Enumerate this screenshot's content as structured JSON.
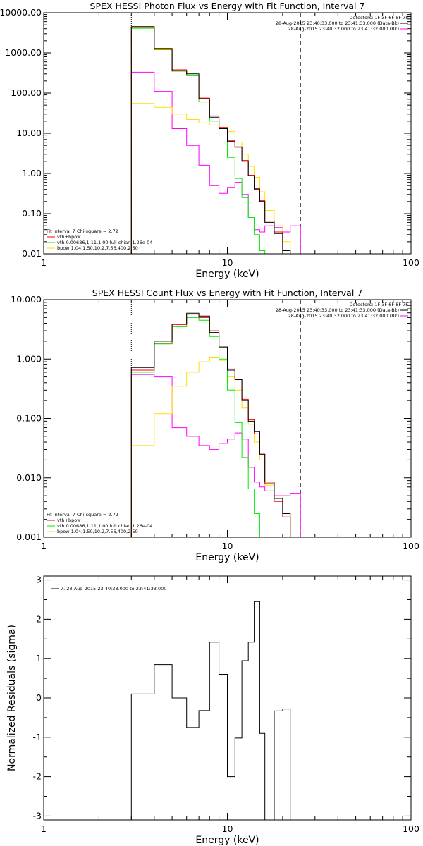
{
  "chart_data": [
    {
      "type": "line",
      "title": "SPEX HESSI Photon Flux vs Energy with Fit Function, Interval 7",
      "xlabel": "Energy (keV)",
      "ylabel": "",
      "x_scale": "log",
      "y_scale": "log",
      "xlim": [
        1,
        100
      ],
      "ylim": [
        0.01,
        10000
      ],
      "x_ticks": [
        {
          "v": 1,
          "label": "1"
        },
        {
          "v": 10,
          "label": "10"
        },
        {
          "v": 100,
          "label": "100"
        }
      ],
      "y_ticks": [
        {
          "v": 10000,
          "label": "10000.00"
        },
        {
          "v": 1000,
          "label": "1000.00"
        },
        {
          "v": 100,
          "label": "100.00"
        },
        {
          "v": 10,
          "label": "10.00"
        },
        {
          "v": 1,
          "label": "1.00"
        },
        {
          "v": 0.1,
          "label": "0.10"
        },
        {
          "v": 0.01,
          "label": "0.01"
        }
      ],
      "vlines": [
        {
          "x": 3,
          "style": "dotted",
          "color": "#000000"
        },
        {
          "x": 25,
          "style": "dashed",
          "color": "#000000"
        }
      ],
      "bin_edges": [
        3,
        4,
        5,
        6,
        7,
        8,
        9,
        10,
        11,
        12,
        13,
        14,
        15,
        16,
        18,
        20,
        22,
        25
      ],
      "series": [
        {
          "name": "data",
          "color": "#000000",
          "values": [
            4500,
            1250,
            360,
            300,
            72,
            25,
            13,
            6.2,
            4.5,
            2.0,
            0.88,
            0.4,
            0.2,
            0.06,
            0.032,
            0.012,
            null
          ]
        },
        {
          "name": "vth+bpow",
          "color": "#ff0000",
          "values": [
            4300,
            1300,
            380,
            280,
            75,
            27,
            14,
            6.5,
            4.6,
            2.1,
            0.9,
            0.42,
            0.21,
            0.065,
            0.035,
            0.012,
            null
          ]
        },
        {
          "name": "vth 0.00686,1.11,1.00 full chian 1.26e-04",
          "color": "#00ee00",
          "values": [
            4100,
            1200,
            350,
            270,
            60,
            20,
            8,
            2.5,
            0.75,
            0.25,
            0.08,
            0.03,
            0.012,
            null,
            null,
            null,
            null
          ]
        },
        {
          "name": "bpow 1.04,1.50,10.2,7.56,400,2.50",
          "color": "#ffdd00",
          "values": [
            55,
            44,
            30,
            22,
            18,
            16,
            14,
            11,
            6,
            3,
            1.5,
            0.8,
            0.35,
            0.12,
            0.05,
            0.02,
            0.01
          ]
        },
        {
          "name": "Bk",
          "color": "#ff00ff",
          "values": [
            330,
            110,
            13,
            5,
            1.6,
            0.5,
            0.32,
            0.45,
            0.6,
            0.3,
            0.08,
            0.04,
            0.035,
            0.05,
            0.045,
            0.035,
            0.05
          ]
        }
      ],
      "legend_left": {
        "title": "Fit Interval 7   Chi-square = 2.72",
        "items": [
          {
            "label": "vth+bpow",
            "color": "#ff0000"
          },
          {
            "label": "vth 0.00686,1.11,1.00  full chian 1.26e-04",
            "color": "#00ee00"
          },
          {
            "label": "bpow 1.04,1.50,10.2,7.56,400,2.50",
            "color": "#ffdd00"
          }
        ]
      },
      "legend_right": {
        "header": "Detectors: 1F 3F 6F 8F 7F",
        "items": [
          {
            "label": "28-Aug-2015 23:40:33.000 to 23:41:33.000 (Data-Bk)",
            "color": "#000000"
          },
          {
            "label": "28-Aug-2015 23:40:32.000 to 23:41:32.000 (Bk)",
            "color": "#ff00ff"
          }
        ]
      }
    },
    {
      "type": "line",
      "title": "SPEX HESSI Count Flux vs Energy with Fit Function, Interval 7",
      "xlabel": "Energy (keV)",
      "ylabel": "",
      "x_scale": "log",
      "y_scale": "log",
      "xlim": [
        1,
        100
      ],
      "ylim": [
        0.001,
        10
      ],
      "x_ticks": [
        {
          "v": 1,
          "label": "1"
        },
        {
          "v": 10,
          "label": "10"
        },
        {
          "v": 100,
          "label": "100"
        }
      ],
      "y_ticks": [
        {
          "v": 10,
          "label": "10.000"
        },
        {
          "v": 1,
          "label": "1.000"
        },
        {
          "v": 0.1,
          "label": "0.100"
        },
        {
          "v": 0.01,
          "label": "0.010"
        },
        {
          "v": 0.001,
          "label": "0.001"
        }
      ],
      "vlines": [
        {
          "x": 3,
          "style": "dotted",
          "color": "#000000"
        },
        {
          "x": 25,
          "style": "dashed",
          "color": "#000000"
        }
      ],
      "bin_edges": [
        3,
        4,
        5,
        6,
        7,
        8,
        9,
        10,
        11,
        12,
        13,
        14,
        15,
        16,
        18,
        20,
        22,
        25
      ],
      "series": [
        {
          "name": "data",
          "color": "#000000",
          "values": [
            0.72,
            2.0,
            3.9,
            5.9,
            5.3,
            2.8,
            1.6,
            0.65,
            0.45,
            0.2,
            0.09,
            0.06,
            0.025,
            0.0085,
            0.0045,
            0.0025,
            null
          ]
        },
        {
          "name": "vth+bpow",
          "color": "#ff0000",
          "values": [
            0.65,
            1.85,
            3.8,
            5.7,
            5.0,
            3.0,
            1.6,
            0.68,
            0.46,
            0.21,
            0.095,
            0.055,
            0.025,
            0.008,
            0.004,
            0.0022,
            null
          ]
        },
        {
          "name": "vth 0.00686,1.11,1.00 full chian 1.26e-04",
          "color": "#00ee00",
          "values": [
            0.6,
            1.8,
            3.5,
            5.0,
            4.5,
            2.4,
            1.0,
            0.3,
            0.085,
            0.022,
            0.0065,
            0.0025,
            null,
            null,
            null,
            null,
            null
          ]
        },
        {
          "name": "bpow 1.04,1.50,10.2,7.56,400,2.50",
          "color": "#ffdd00",
          "values": [
            0.035,
            0.12,
            0.35,
            0.6,
            0.9,
            1.05,
            0.95,
            0.5,
            0.3,
            0.15,
            0.08,
            0.04,
            0.02,
            0.0075,
            0.0045,
            0.0025,
            0.001
          ]
        },
        {
          "name": "Bk",
          "color": "#ff00ff",
          "values": [
            0.55,
            0.5,
            0.07,
            0.05,
            0.035,
            0.03,
            0.038,
            0.045,
            0.057,
            0.045,
            0.015,
            0.0085,
            0.007,
            0.006,
            0.005,
            0.005,
            0.0055
          ]
        }
      ],
      "legend_left": {
        "title": "Fit Interval 7   Chi-square = 2.72",
        "items": [
          {
            "label": "vth+bpow",
            "color": "#ff0000"
          },
          {
            "label": "vth 0.00686,1.11,1.00  full chian 1.26e-04",
            "color": "#00ee00"
          },
          {
            "label": "bpow 1.04,1.50,10.2,7.56,400,2.50",
            "color": "#ffdd00"
          }
        ]
      },
      "legend_right": {
        "header": "Detectors: 1F 3F 6F 8F 7F",
        "items": [
          {
            "label": "28-Aug-2015 23:40:33.000 to 23:41:33.000 (Data-Bk)",
            "color": "#000000"
          },
          {
            "label": "28-Aug-2015 23:40:32.000 to 23:41:32.000 (Bk)",
            "color": "#ff00ff"
          }
        ]
      }
    },
    {
      "type": "line",
      "title": "",
      "xlabel": "Energy (keV)",
      "ylabel": "Normalized Residuals (sigma)",
      "x_scale": "log",
      "y_scale": "linear",
      "xlim": [
        1,
        100
      ],
      "ylim": [
        -3.1,
        3.1
      ],
      "x_ticks": [
        {
          "v": 1,
          "label": "1"
        },
        {
          "v": 10,
          "label": "10"
        },
        {
          "v": 100,
          "label": "100"
        }
      ],
      "y_ticks": [
        {
          "v": 3,
          "label": "3"
        },
        {
          "v": 2,
          "label": "2"
        },
        {
          "v": 1,
          "label": "1"
        },
        {
          "v": 0,
          "label": "0"
        },
        {
          "v": -1,
          "label": "-1"
        },
        {
          "v": -2,
          "label": "-2"
        },
        {
          "v": -3,
          "label": "-3"
        }
      ],
      "vlines": [],
      "bin_edges": [
        3,
        4,
        5,
        6,
        7,
        8,
        9,
        10,
        11,
        12,
        13,
        14,
        15,
        16,
        18,
        20,
        22,
        25
      ],
      "series": [
        {
          "name": "7. 28-Aug-2015 23:40:33.000 to 23:41:33.000",
          "color": "#000000",
          "values": [
            0.1,
            0.85,
            0.0,
            -0.75,
            -0.32,
            1.42,
            0.6,
            -2.0,
            -1.02,
            0.95,
            1.42,
            2.45,
            -0.9,
            -3.15,
            -0.33,
            -0.28,
            null
          ]
        }
      ],
      "legend_left": {
        "title": "",
        "items": [
          {
            "label": "7. 28-Aug-2015 23:40:33.000 to 23:41:33.000",
            "color": "#000000"
          }
        ]
      }
    }
  ]
}
